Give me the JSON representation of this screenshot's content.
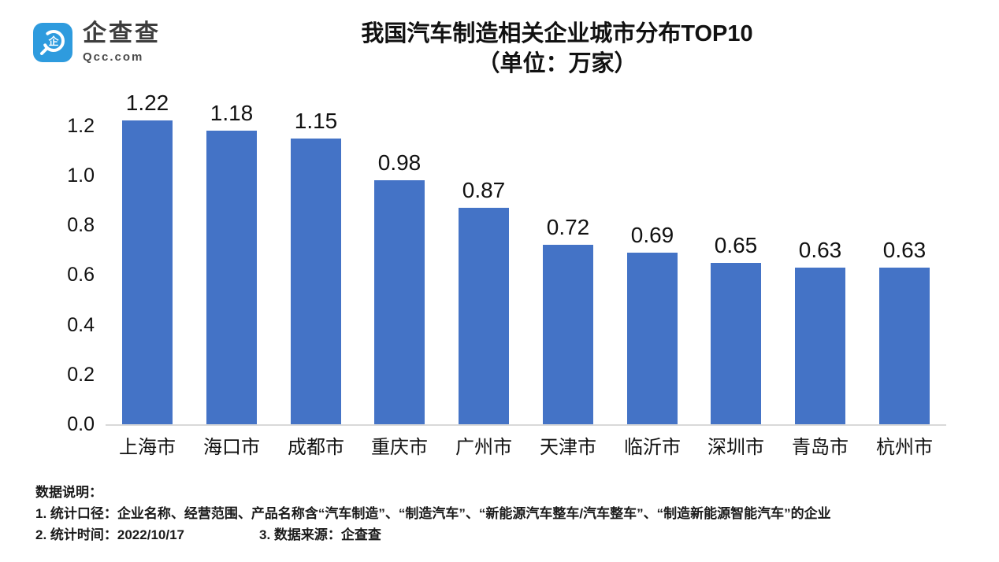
{
  "logo": {
    "name": "企查查",
    "domain": "Qcc.com"
  },
  "title": {
    "line1": "我国汽车制造相关企业城市分布TOP10",
    "line2": "（单位：万家）"
  },
  "chart_data": {
    "type": "bar",
    "title": "我国汽车制造相关企业城市分布TOP10",
    "subtitle": "（单位：万家）",
    "unit": "万家",
    "categories": [
      "上海市",
      "海口市",
      "成都市",
      "重庆市",
      "广州市",
      "天津市",
      "临沂市",
      "深圳市",
      "青岛市",
      "杭州市"
    ],
    "values": [
      1.22,
      1.18,
      1.15,
      0.98,
      0.87,
      0.72,
      0.69,
      0.65,
      0.63,
      0.63
    ],
    "data_labels": [
      "1.22",
      "1.18",
      "1.15",
      "0.98",
      "0.87",
      "0.72",
      "0.69",
      "0.65",
      "0.63",
      "0.63"
    ],
    "xlabel": "",
    "ylabel": "",
    "ylim": [
      0,
      1.2
    ],
    "ytick_step": 0.2,
    "yticks": [
      "0.0",
      "0.2",
      "0.4",
      "0.6",
      "0.8",
      "1.0",
      "1.2"
    ],
    "bar_color": "#4473C6",
    "grid": false,
    "legend": null
  },
  "footer": {
    "heading": "数据说明：",
    "line1": "1. 统计口径：企业名称、经营范围、产品名称含“汽车制造”、“制造汽车”、“新能源汽车整车/汽车整车”、“制造新能源智能汽车”的企业",
    "line2_left": "2. 统计时间：2022/10/17",
    "line2_right": "3. 数据来源：企查查"
  }
}
